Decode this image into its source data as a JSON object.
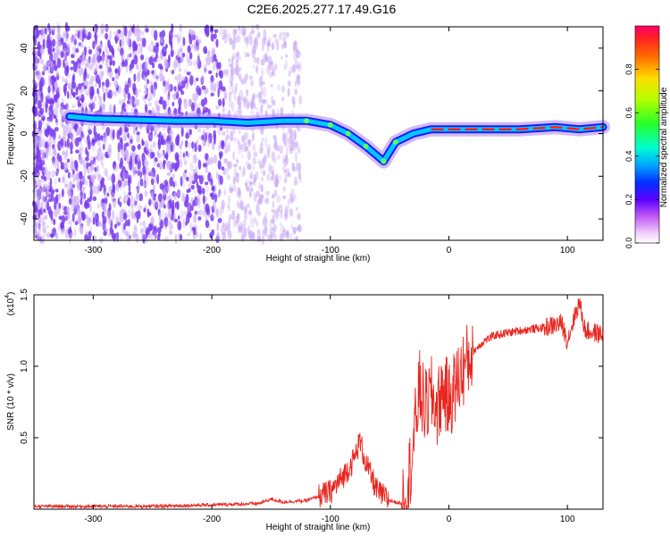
{
  "figure_title": "C2E6.2025.277.17.49.G16",
  "chart_data": [
    {
      "type": "heatmap",
      "title": "C2E6.2025.277.17.49.G16",
      "xlabel": "Height of straight line (km)",
      "ylabel": "Frequency (Hz)",
      "xlim": [
        -350,
        130
      ],
      "ylim": [
        -50,
        50
      ],
      "xticks": [
        -300,
        -200,
        -100,
        0,
        100
      ],
      "yticks": [
        -40,
        -20,
        0,
        20,
        40
      ],
      "xtick_labels": [
        "-300",
        "-200",
        "-100",
        "0",
        "100"
      ],
      "ytick_labels": [
        "-40",
        "-20",
        "0",
        "20",
        "40"
      ],
      "colorbar": {
        "label": "Normalized spectral amplitude",
        "range": [
          0.0,
          1.0
        ],
        "ticks": [
          0.0,
          0.2,
          0.4,
          0.6,
          0.8
        ],
        "tick_labels": [
          "0.0",
          "0.2",
          "0.4",
          "0.6",
          "0.8"
        ],
        "colormap": "rainbow"
      },
      "signal_trace": {
        "x": [
          -320,
          -300,
          -230,
          -200,
          -170,
          -140,
          -120,
          -100,
          -85,
          -70,
          -55,
          -45,
          -30,
          -15,
          0,
          30,
          60,
          90,
          110,
          130
        ],
        "y": [
          8,
          7,
          6,
          6,
          5,
          6,
          6,
          4,
          0,
          -6,
          -13,
          -4,
          0,
          2,
          2,
          2,
          2,
          3,
          2,
          3
        ]
      },
      "colors": {
        "noise": "#7a3cf0",
        "noise_light": "#c8a8f4",
        "trace": "#1a1aff",
        "peak": "#ff2020"
      }
    },
    {
      "type": "line",
      "xlabel": "Height of straight line (km)",
      "ylabel": "SNR (10 * v/v)",
      "y_multiplier_label": "(x10",
      "y_multiplier_exp": "4",
      "y_multiplier_close": ")",
      "xlim": [
        -350,
        130
      ],
      "ylim": [
        0,
        1.5
      ],
      "xticks": [
        -300,
        -200,
        -100,
        0,
        100
      ],
      "yticks": [
        0.5,
        1.0,
        1.5
      ],
      "xtick_labels": [
        "-300",
        "-200",
        "-100",
        "0",
        "100"
      ],
      "ytick_labels": [
        "0.5",
        "1.0",
        "1.5"
      ],
      "series": [
        {
          "name": "SNR",
          "color": "#e8251f",
          "x": [
            -350,
            -300,
            -250,
            -200,
            -160,
            -150,
            -140,
            -120,
            -100,
            -90,
            -80,
            -75,
            -70,
            -60,
            -50,
            -40,
            -35,
            -30,
            -25,
            -20,
            -15,
            -10,
            -5,
            0,
            10,
            20,
            30,
            40,
            60,
            80,
            95,
            100,
            105,
            110,
            115,
            120,
            130
          ],
          "y": [
            0.02,
            0.02,
            0.02,
            0.03,
            0.04,
            0.07,
            0.05,
            0.06,
            0.12,
            0.22,
            0.35,
            0.48,
            0.32,
            0.12,
            0.06,
            0.04,
            0.15,
            0.45,
            0.85,
            0.7,
            0.8,
            0.7,
            0.85,
            0.75,
            0.95,
            1.1,
            1.18,
            1.22,
            1.25,
            1.27,
            1.3,
            1.18,
            1.32,
            1.45,
            1.25,
            1.24,
            1.22
          ]
        }
      ]
    }
  ]
}
